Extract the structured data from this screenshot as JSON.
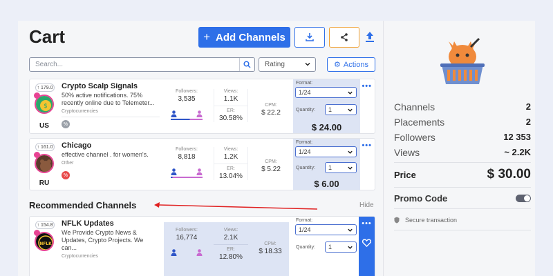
{
  "header": {
    "title": "Cart",
    "add_label": "Add Channels",
    "download_icon": "download-icon",
    "share_icon": "share-icon",
    "upload_icon": "upload-icon"
  },
  "toolbar": {
    "search_placeholder": "Search...",
    "sort_value": "Rating",
    "actions_label": "Actions"
  },
  "labels": {
    "followers": "Followers:",
    "views": "Views:",
    "er": "ER:",
    "cpm": "CPM:",
    "format": "Format:",
    "quantity": "Quantity:"
  },
  "cart_items": [
    {
      "rank": "179.0",
      "name": "Crypto Scalp Signals",
      "description": "50% active notifications. 75% recently online due to Telemeter...",
      "category": "Cryptocurrencies",
      "country": "US",
      "followers": "3,535",
      "views": "1.1K",
      "er": "30.58%",
      "cpm": "$ 22.2",
      "format": "1/24",
      "quantity": "1",
      "price": "$ 24.00"
    },
    {
      "rank": "161.0",
      "name": "Chicago",
      "description": "effective channel . for women's.",
      "category": "Other",
      "country": "RU",
      "followers": "8,818",
      "views": "1.2K",
      "er": "13.04%",
      "cpm": "$ 5.22",
      "format": "1/24",
      "quantity": "1",
      "price": "$ 6.00"
    }
  ],
  "recommended": {
    "title": "Recommended Channels",
    "hide_label": "Hide",
    "items": [
      {
        "rank": "154.8",
        "name": "NFLK Updates",
        "description": "We Provide Crypto News & Updates, Crypto Projects. We can...",
        "category": "Cryptocurrencies",
        "followers": "16,774",
        "views": "2.1K",
        "er": "12.80%",
        "cpm": "$ 18.33",
        "format": "1/24",
        "quantity": "1"
      }
    ]
  },
  "summary": {
    "channels_label": "Channels",
    "channels_value": "2",
    "placements_label": "Placements",
    "placements_value": "2",
    "followers_label": "Followers",
    "followers_value": "12 353",
    "views_label": "Views",
    "views_value": "~ 2.2K",
    "price_label": "Price",
    "price_value": "$ 30.00",
    "promo_label": "Promo Code",
    "secure_label": "Secure transaction"
  },
  "colors": {
    "accent": "#2e6fe8",
    "share_border": "#f0a030",
    "format_panel": "#dde4f4",
    "male_bar": "#2e55c8",
    "female_bar": "#c86ad0"
  }
}
